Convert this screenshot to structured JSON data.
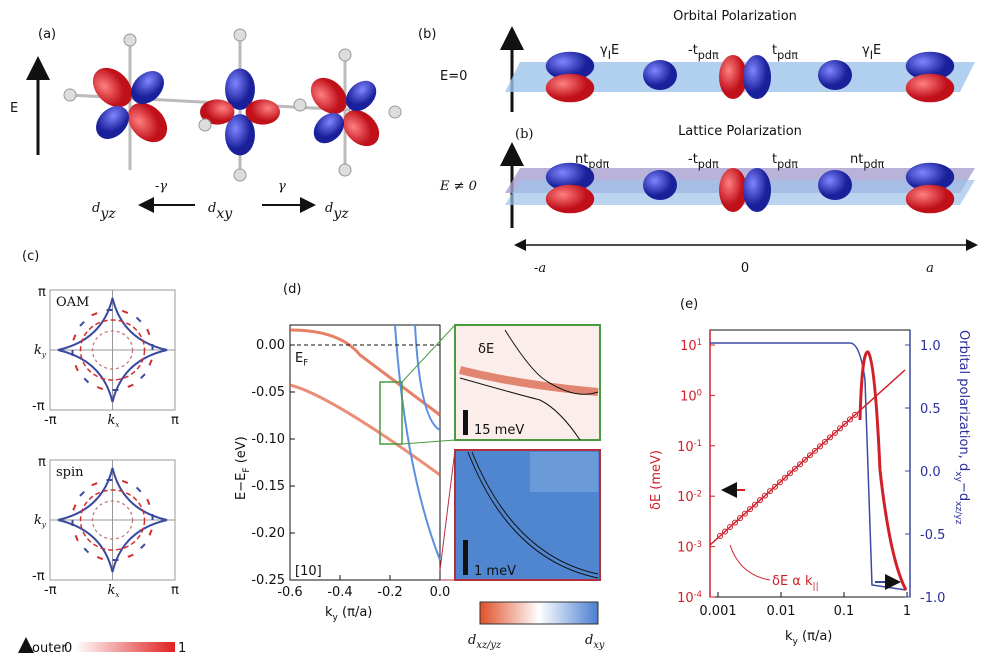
{
  "panel_a": {
    "label": "(a)",
    "energy_axis": "E",
    "hoppings": [
      "-γ",
      "γ"
    ],
    "orbitals": [
      {
        "main": "d",
        "sub": "yz"
      },
      {
        "main": "d",
        "sub": "xy"
      },
      {
        "main": "d",
        "sub": "yz"
      }
    ]
  },
  "panel_b": {
    "label": "(b)",
    "top": {
      "title": "Orbital Polarization",
      "field": "E=0",
      "hoppings": [
        {
          "main": "γ",
          "sub": "I",
          "post": "E"
        },
        {
          "main": "-t",
          "sub": "pdπ"
        },
        {
          "main": "t",
          "sub": "pdπ"
        },
        {
          "main": "γ",
          "sub": "I",
          "post": "E"
        }
      ]
    },
    "bottom": {
      "label": "(b)",
      "title": "Lattice Polarization",
      "field": "E ≠ 0",
      "hoppings": [
        {
          "main": "nt",
          "sub": "pdπ"
        },
        {
          "main": "-t",
          "sub": "pdπ"
        },
        {
          "main": "t",
          "sub": "pdπ"
        },
        {
          "main": "nt",
          "sub": "pdπ"
        }
      ]
    },
    "axis_labels": [
      "-a",
      "0",
      "a"
    ]
  },
  "panel_c": {
    "label": "(c)",
    "plots": [
      {
        "name": "OAM",
        "y_axis": {
          "main": "k",
          "sub": "y"
        },
        "x_axis": {
          "main": "k",
          "sub": "x"
        },
        "y_ticks": [
          "π",
          "-π"
        ],
        "x_ticks": [
          "-π",
          "π"
        ]
      },
      {
        "name": "spin",
        "y_axis": {
          "main": "k",
          "sub": "y"
        },
        "x_axis": {
          "main": "k",
          "sub": "x"
        },
        "y_ticks": [
          "π",
          "-π"
        ],
        "x_ticks": [
          "-π",
          "π"
        ]
      }
    ],
    "colorbar": {
      "label": "outer",
      "min": "0",
      "max": "1"
    }
  },
  "panel_d": {
    "label": "(d)",
    "y_axis_label": {
      "main": "E−E",
      "sub": "F",
      "post": " (eV)"
    },
    "x_axis_label": {
      "main": "k",
      "sub": "y",
      "post": " (π/a)"
    },
    "y_ticks": [
      "0.00",
      "-0.05",
      "-0.10",
      "-0.15",
      "-0.20",
      "-0.25"
    ],
    "x_ticks": [
      "-0.6",
      "-0.4",
      "-0.2",
      "0.0"
    ],
    "fermi_label": {
      "main": "E",
      "sub": "F"
    },
    "direction": "[10]",
    "inset_top": {
      "gap_label": "δE",
      "scale": "15 meV"
    },
    "inset_bottom": {
      "scale": "1 meV"
    },
    "colorbar": [
      {
        "main": "d",
        "sub": "xz/yz"
      },
      {
        "main": "d",
        "sub": "xy"
      }
    ]
  },
  "panel_e": {
    "label": "(e)",
    "y_axis_label": "δE (meV)",
    "y2_axis_label": {
      "main": "Orbital polarization, d",
      "sub": "xy",
      "post": "−d",
      "sub2": "xz/yz"
    },
    "y_ticks": [
      {
        "base": "10",
        "exp": "1"
      },
      {
        "base": "10",
        "exp": "0"
      },
      {
        "base": "10",
        "exp": "-1"
      },
      {
        "base": "10",
        "exp": "-2"
      },
      {
        "base": "10",
        "exp": "-3"
      },
      {
        "base": "10",
        "exp": "-4"
      }
    ],
    "y2_ticks": [
      "1.0",
      "0.5",
      "0.0",
      "-0.5",
      "-1.0"
    ],
    "x_ticks": [
      "0.001",
      "0.01",
      "0.1",
      "1"
    ],
    "x_axis_label": {
      "main": "k",
      "sub": "y",
      "post": " (π/a)"
    },
    "annotation": {
      "main": "δE α k",
      "sub": "||"
    }
  }
}
